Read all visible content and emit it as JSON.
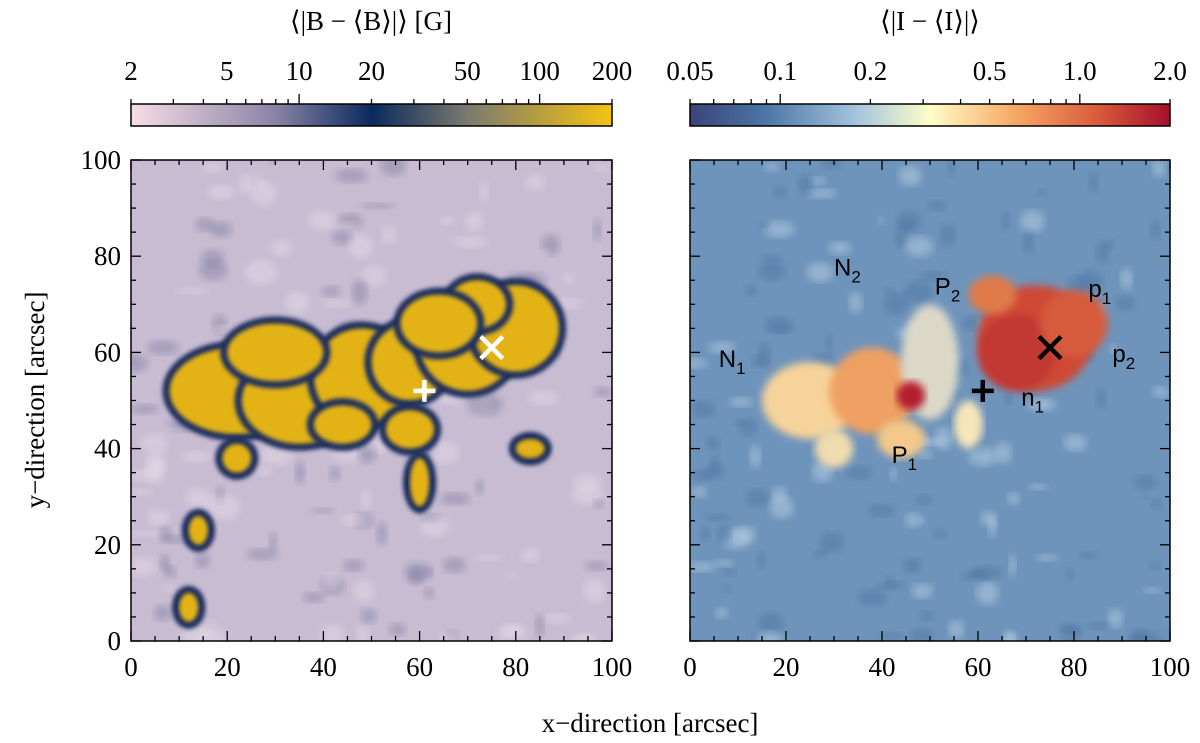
{
  "chart_data": [
    {
      "type": "heatmap",
      "title": "⟨|B − ⟨B⟩|⟩  [G]",
      "xlabel": "x−direction  [arcsec]",
      "ylabel": "y−direction  [arcsec]",
      "xlim": [
        0,
        100
      ],
      "ylim": [
        0,
        100
      ],
      "xticks": [
        "0",
        "20",
        "40",
        "60",
        "80",
        "100"
      ],
      "yticks": [
        "0",
        "20",
        "40",
        "60",
        "80",
        "100"
      ],
      "colorbar": {
        "scale": "log",
        "range": [
          2,
          200
        ],
        "ticks": [
          2,
          5,
          10,
          20,
          50,
          100,
          200
        ],
        "tick_labels": [
          "2",
          "5",
          "10",
          "20",
          "50",
          "100",
          "200"
        ],
        "colors": [
          "#f7dde6",
          "#8a83a6",
          "#0a2a5c",
          "#7a7a70",
          "#f5c310"
        ]
      },
      "markers": [
        {
          "symbol": "plus",
          "x": 61,
          "y": 52,
          "color": "#ffffff"
        },
        {
          "symbol": "cross",
          "x": 75,
          "y": 61,
          "color": "#ffffff"
        }
      ]
    },
    {
      "type": "heatmap",
      "title": "⟨|I − ⟨I⟩|⟩",
      "xlim": [
        0,
        100
      ],
      "ylim": [
        0,
        100
      ],
      "xticks": [
        "0",
        "20",
        "40",
        "60",
        "80",
        "100"
      ],
      "colorbar": {
        "scale": "log",
        "range": [
          0.05,
          2.0
        ],
        "ticks": [
          0.05,
          0.1,
          0.2,
          0.5,
          1.0,
          2.0
        ],
        "tick_labels": [
          "0.05",
          "0.1",
          "0.2",
          "0.5",
          "1.0",
          "2.0"
        ],
        "colors": [
          "#3b4478",
          "#4a73a3",
          "#a6c6de",
          "#fefdc8",
          "#f6a763",
          "#d95a3c",
          "#a50f2a"
        ]
      },
      "markers": [
        {
          "symbol": "plus",
          "x": 61,
          "y": 52,
          "color": "#000000"
        },
        {
          "symbol": "cross",
          "x": 75,
          "y": 61,
          "color": "#000000"
        }
      ],
      "annotations": [
        {
          "label": "N",
          "sub": "1",
          "x": 6,
          "y": 57
        },
        {
          "label": "N",
          "sub": "2",
          "x": 30,
          "y": 76
        },
        {
          "label": "P",
          "sub": "2",
          "x": 51,
          "y": 72
        },
        {
          "label": "p",
          "sub": "1",
          "x": 83,
          "y": 71.5
        },
        {
          "label": "p",
          "sub": "2",
          "x": 88,
          "y": 58
        },
        {
          "label": "n",
          "sub": "1",
          "x": 69,
          "y": 49
        },
        {
          "label": "P",
          "sub": "1",
          "x": 42,
          "y": 37
        }
      ]
    }
  ]
}
